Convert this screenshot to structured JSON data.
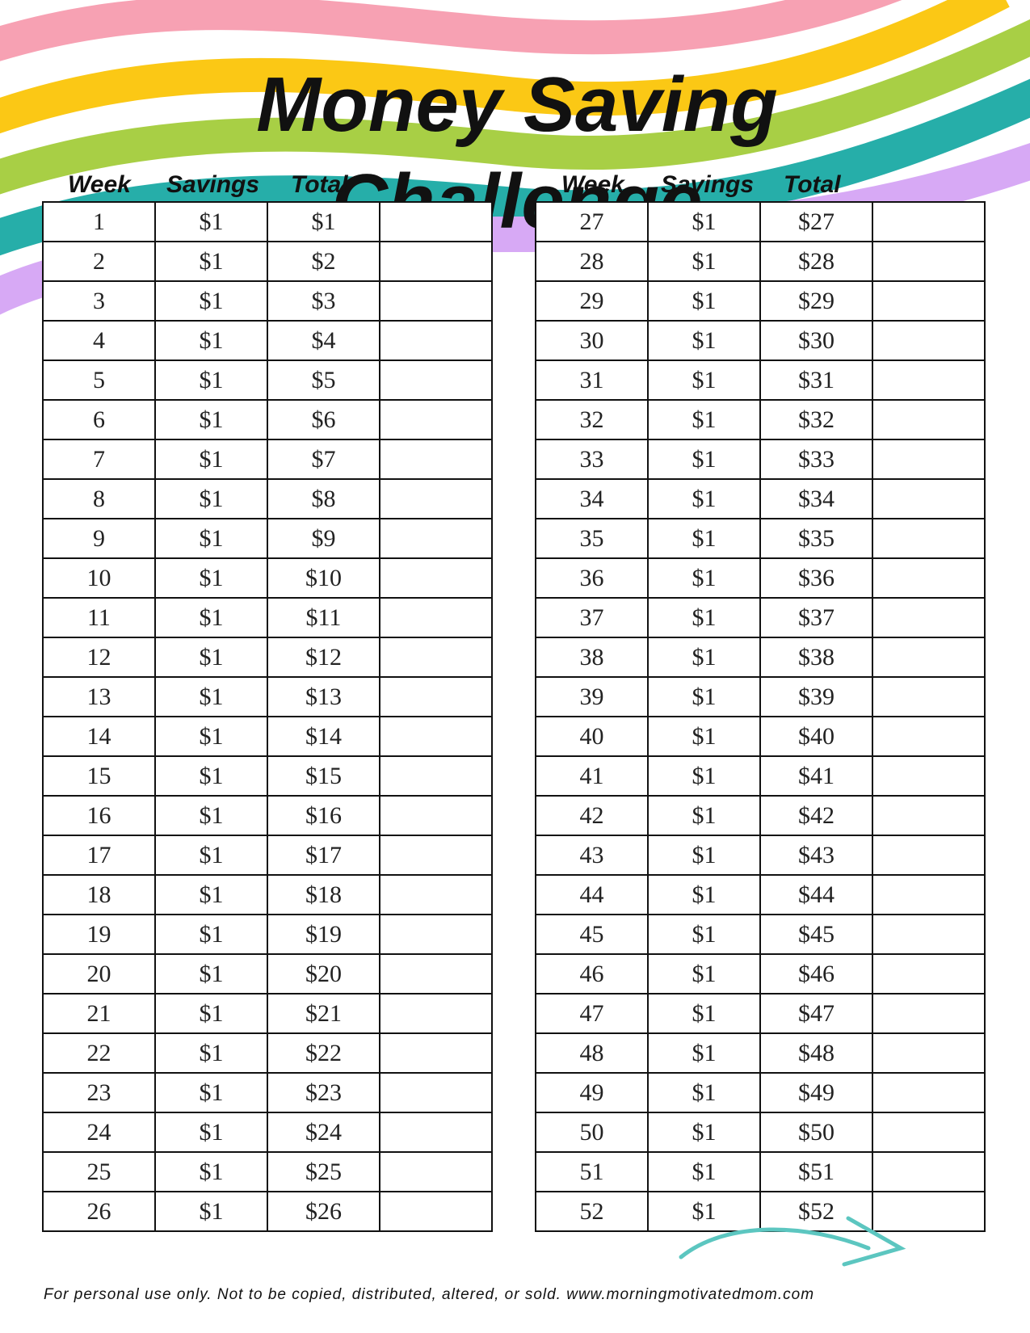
{
  "title": "Money Saving Challenge",
  "columns": {
    "week": "Week",
    "savings": "Savings",
    "total": "Total"
  },
  "stripe_colors": [
    "#f7a1b3",
    "#fbc815",
    "#a8cf45",
    "#26aea9",
    "#d7a9f5"
  ],
  "accent_arrow_color": "#5cc6c0",
  "left_rows": [
    [
      "1",
      "$1",
      "$1"
    ],
    [
      "2",
      "$1",
      "$2"
    ],
    [
      "3",
      "$1",
      "$3"
    ],
    [
      "4",
      "$1",
      "$4"
    ],
    [
      "5",
      "$1",
      "$5"
    ],
    [
      "6",
      "$1",
      "$6"
    ],
    [
      "7",
      "$1",
      "$7"
    ],
    [
      "8",
      "$1",
      "$8"
    ],
    [
      "9",
      "$1",
      "$9"
    ],
    [
      "10",
      "$1",
      "$10"
    ],
    [
      "11",
      "$1",
      "$11"
    ],
    [
      "12",
      "$1",
      "$12"
    ],
    [
      "13",
      "$1",
      "$13"
    ],
    [
      "14",
      "$1",
      "$14"
    ],
    [
      "15",
      "$1",
      "$15"
    ],
    [
      "16",
      "$1",
      "$16"
    ],
    [
      "17",
      "$1",
      "$17"
    ],
    [
      "18",
      "$1",
      "$18"
    ],
    [
      "19",
      "$1",
      "$19"
    ],
    [
      "20",
      "$1",
      "$20"
    ],
    [
      "21",
      "$1",
      "$21"
    ],
    [
      "22",
      "$1",
      "$22"
    ],
    [
      "23",
      "$1",
      "$23"
    ],
    [
      "24",
      "$1",
      "$24"
    ],
    [
      "25",
      "$1",
      "$25"
    ],
    [
      "26",
      "$1",
      "$26"
    ]
  ],
  "right_rows": [
    [
      "27",
      "$1",
      "$27"
    ],
    [
      "28",
      "$1",
      "$28"
    ],
    [
      "29",
      "$1",
      "$29"
    ],
    [
      "30",
      "$1",
      "$30"
    ],
    [
      "31",
      "$1",
      "$31"
    ],
    [
      "32",
      "$1",
      "$32"
    ],
    [
      "33",
      "$1",
      "$33"
    ],
    [
      "34",
      "$1",
      "$34"
    ],
    [
      "35",
      "$1",
      "$35"
    ],
    [
      "36",
      "$1",
      "$36"
    ],
    [
      "37",
      "$1",
      "$37"
    ],
    [
      "38",
      "$1",
      "$38"
    ],
    [
      "39",
      "$1",
      "$39"
    ],
    [
      "40",
      "$1",
      "$40"
    ],
    [
      "41",
      "$1",
      "$41"
    ],
    [
      "42",
      "$1",
      "$42"
    ],
    [
      "43",
      "$1",
      "$43"
    ],
    [
      "44",
      "$1",
      "$44"
    ],
    [
      "45",
      "$1",
      "$45"
    ],
    [
      "46",
      "$1",
      "$46"
    ],
    [
      "47",
      "$1",
      "$47"
    ],
    [
      "48",
      "$1",
      "$48"
    ],
    [
      "49",
      "$1",
      "$49"
    ],
    [
      "50",
      "$1",
      "$50"
    ],
    [
      "51",
      "$1",
      "$51"
    ],
    [
      "52",
      "$1",
      "$52"
    ]
  ],
  "footer": "For personal use only. Not to be copied, distributed, altered, or sold. www.morningmotivatedmom.com"
}
